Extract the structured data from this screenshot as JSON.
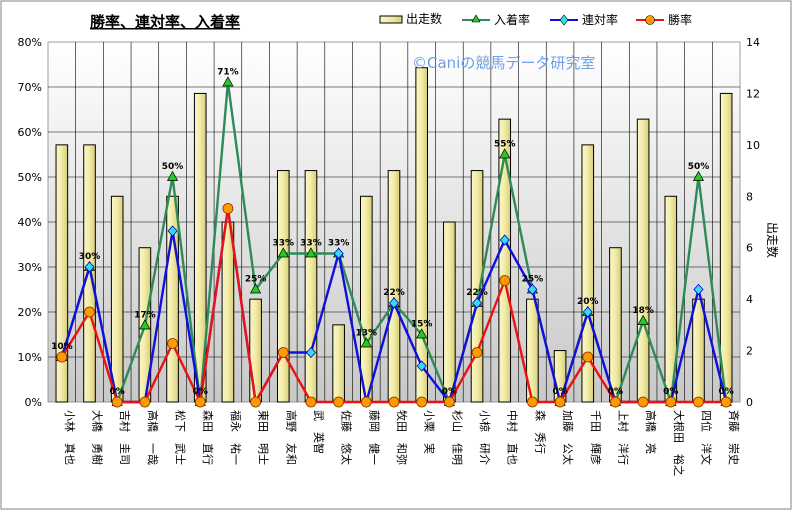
{
  "chart_data": {
    "type": "bar",
    "title": "勝率、連対率、入着率",
    "watermark": "©Caniの競馬データ研究室",
    "y2label": "出走数",
    "ylim": [
      0,
      80
    ],
    "y2lim": [
      0,
      14
    ],
    "yticks": [
      "0%",
      "10%",
      "20%",
      "30%",
      "40%",
      "50%",
      "60%",
      "70%",
      "80%"
    ],
    "y2ticks": [
      "0",
      "2",
      "4",
      "6",
      "8",
      "10",
      "12",
      "14"
    ],
    "grid": true,
    "legend_position": "top-right",
    "categories": [
      "小林　真也",
      "大橋　勇樹",
      "吉村　圭司",
      "高橋　一哉",
      "松下　武士",
      "森田　直行",
      "福永　祐一",
      "東田　明士",
      "高野　友和",
      "武　英智",
      "佐藤　悠太",
      "藤岡　健一",
      "牧田　和弥",
      "小栗　実",
      "杉山　佳明",
      "小椋　研介",
      "中村　直也",
      "森　秀行",
      "加藤　公太",
      "千田　輝彦",
      "上村　洋行",
      "高橋　亮",
      "大根田　裕之",
      "四位　洋文",
      "斉藤　崇史"
    ],
    "series": [
      {
        "name": "出走数",
        "kind": "bar",
        "color": "#f0eaa0",
        "values": [
          10,
          10,
          8,
          6,
          8,
          12,
          7,
          4,
          9,
          9,
          3,
          8,
          9,
          13,
          7,
          9,
          11,
          4,
          2,
          10,
          6,
          11,
          8,
          4,
          12
        ]
      },
      {
        "name": "入着率",
        "kind": "line",
        "color": "#2e8b57",
        "marker": "triangle",
        "marker_color": "#22cc22",
        "values": [
          10,
          30,
          0,
          17,
          50,
          0,
          71,
          25,
          33,
          33,
          33,
          13,
          22,
          15,
          0,
          22,
          55,
          25,
          0,
          20,
          0,
          18,
          0,
          50,
          0
        ]
      },
      {
        "name": "連対率",
        "kind": "line",
        "color": "#1010dd",
        "marker": "diamond",
        "marker_color": "#33ddee",
        "values": [
          10,
          30,
          0,
          0,
          38,
          0,
          43,
          0,
          11,
          11,
          33,
          0,
          22,
          8,
          0,
          22,
          36,
          25,
          0,
          20,
          0,
          0,
          0,
          25,
          0
        ]
      },
      {
        "name": "勝率",
        "kind": "line",
        "color": "#ee1111",
        "marker": "circle",
        "marker_color": "#ff9900",
        "values": [
          10,
          20,
          0,
          0,
          13,
          0,
          43,
          0,
          11,
          0,
          0,
          0,
          0,
          0,
          0,
          11,
          27,
          0,
          0,
          10,
          0,
          0,
          0,
          0,
          0
        ]
      }
    ],
    "data_labels": [
      "10%",
      "30%",
      "0%",
      "17%",
      "50%",
      "0%",
      "71%",
      "25%",
      "33%",
      "33%",
      "33%",
      "13%",
      "22%",
      "15%",
      "0%",
      "22%",
      "55%",
      "25%",
      "0%",
      "20%",
      "0%",
      "18%",
      "0%",
      "50%",
      "0%"
    ]
  }
}
